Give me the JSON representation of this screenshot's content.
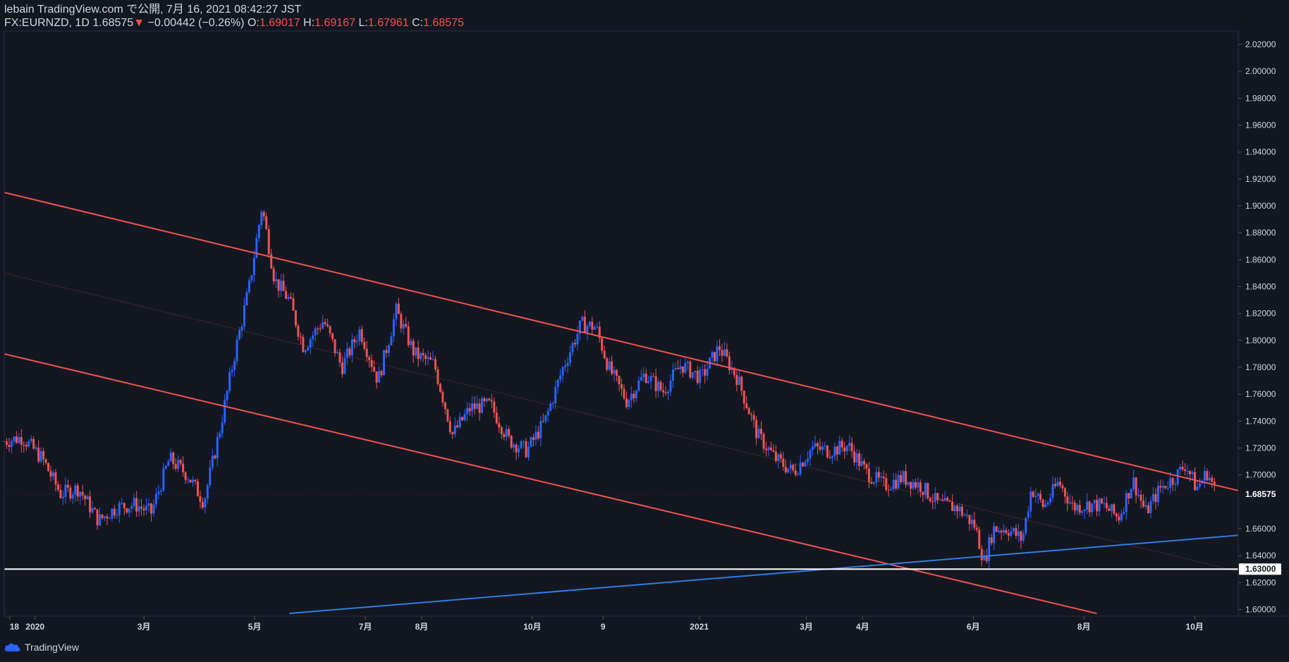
{
  "header": {
    "published": "lebain TradingView.com で公開, 7月 16, 2021 08:42:27 JST",
    "symbol": "FX:EURNZD, 1D",
    "last": "1.68575",
    "arrow": "▼",
    "change": "−0.00442 (−0.26%)",
    "o_label": "O:",
    "o_value": "1.69017",
    "h_label": "H:",
    "h_value": "1.69167",
    "l_label": "L:",
    "l_value": "1.67961",
    "c_label": "C:",
    "c_value": "1.68575"
  },
  "footer": {
    "brand": "TradingView",
    "logo_icon": "tradingview-cloud-icon"
  },
  "colors": {
    "background": "#131722",
    "up": "#2962ff",
    "down": "#ef5350",
    "channel": "#f05350",
    "support": "#ffffff",
    "trend": "#2f7de1"
  },
  "chart_data": {
    "type": "candlestick",
    "symbol": "FX:EURNZD",
    "interval": "1D",
    "ylim": [
      1.595,
      2.03
    ],
    "xlim": [
      "2019-12-15",
      "2021-10-25"
    ],
    "y_ticks": [
      "2.02000",
      "2.00000",
      "1.98000",
      "1.96000",
      "1.94000",
      "1.92000",
      "1.90000",
      "1.88000",
      "1.86000",
      "1.84000",
      "1.82000",
      "1.80000",
      "1.78000",
      "1.76000",
      "1.74000",
      "1.72000",
      "1.70000",
      "1.66000",
      "1.64000",
      "1.62000",
      "1.60000"
    ],
    "x_ticks": [
      {
        "label": "18",
        "date": "2019-12-18"
      },
      {
        "label": "2020",
        "date": "2020-01-01"
      },
      {
        "label": "3月",
        "date": "2020-03-01"
      },
      {
        "label": "5月",
        "date": "2020-05-01"
      },
      {
        "label": "7月",
        "date": "2020-07-01"
      },
      {
        "label": "8月",
        "date": "2020-08-01"
      },
      {
        "label": "10月",
        "date": "2020-10-01"
      },
      {
        "label": "9",
        "date": "2020-11-09"
      },
      {
        "label": "2021",
        "date": "2021-01-01"
      },
      {
        "label": "3月",
        "date": "2021-03-01"
      },
      {
        "label": "4月",
        "date": "2021-04-01"
      },
      {
        "label": "6月",
        "date": "2021-06-01"
      },
      {
        "label": "8月",
        "date": "2021-08-01"
      },
      {
        "label": "10月",
        "date": "2021-10-01"
      }
    ],
    "price_label": "1.68575",
    "support_label": "1.63000",
    "support_level": 1.63,
    "last_close": 1.68575,
    "closes": [
      {
        "date": "2019-12-15",
        "close": 1.725
      },
      {
        "date": "2019-12-25",
        "close": 1.728
      },
      {
        "date": "2020-01-05",
        "close": 1.712
      },
      {
        "date": "2020-01-15",
        "close": 1.686
      },
      {
        "date": "2020-01-25",
        "close": 1.69
      },
      {
        "date": "2020-02-05",
        "close": 1.666
      },
      {
        "date": "2020-02-15",
        "close": 1.676
      },
      {
        "date": "2020-02-25",
        "close": 1.678
      },
      {
        "date": "2020-03-05",
        "close": 1.672
      },
      {
        "date": "2020-03-15",
        "close": 1.712
      },
      {
        "date": "2020-03-25",
        "close": 1.7
      },
      {
        "date": "2020-04-03",
        "close": 1.68
      },
      {
        "date": "2020-04-12",
        "close": 1.735
      },
      {
        "date": "2020-04-20",
        "close": 1.79
      },
      {
        "date": "2020-04-28",
        "close": 1.84
      },
      {
        "date": "2020-05-05",
        "close": 1.9
      },
      {
        "date": "2020-05-12",
        "close": 1.845
      },
      {
        "date": "2020-05-20",
        "close": 1.83
      },
      {
        "date": "2020-05-28",
        "close": 1.795
      },
      {
        "date": "2020-06-08",
        "close": 1.815
      },
      {
        "date": "2020-06-18",
        "close": 1.78
      },
      {
        "date": "2020-06-28",
        "close": 1.808
      },
      {
        "date": "2020-07-08",
        "close": 1.77
      },
      {
        "date": "2020-07-18",
        "close": 1.822
      },
      {
        "date": "2020-07-28",
        "close": 1.79
      },
      {
        "date": "2020-08-08",
        "close": 1.782
      },
      {
        "date": "2020-08-18",
        "close": 1.73
      },
      {
        "date": "2020-08-28",
        "close": 1.75
      },
      {
        "date": "2020-09-08",
        "close": 1.752
      },
      {
        "date": "2020-09-18",
        "close": 1.726
      },
      {
        "date": "2020-09-28",
        "close": 1.718
      },
      {
        "date": "2020-10-08",
        "close": 1.74
      },
      {
        "date": "2020-10-18",
        "close": 1.78
      },
      {
        "date": "2020-10-28",
        "close": 1.812
      },
      {
        "date": "2020-11-05",
        "close": 1.81
      },
      {
        "date": "2020-11-12",
        "close": 1.78
      },
      {
        "date": "2020-11-22",
        "close": 1.755
      },
      {
        "date": "2020-12-02",
        "close": 1.775
      },
      {
        "date": "2020-12-12",
        "close": 1.762
      },
      {
        "date": "2020-12-22",
        "close": 1.782
      },
      {
        "date": "2021-01-02",
        "close": 1.772
      },
      {
        "date": "2021-01-12",
        "close": 1.795
      },
      {
        "date": "2021-01-22",
        "close": 1.772
      },
      {
        "date": "2021-02-02",
        "close": 1.73
      },
      {
        "date": "2021-02-12",
        "close": 1.712
      },
      {
        "date": "2021-02-22",
        "close": 1.702
      },
      {
        "date": "2021-03-04",
        "close": 1.72
      },
      {
        "date": "2021-03-14",
        "close": 1.718
      },
      {
        "date": "2021-03-24",
        "close": 1.722
      },
      {
        "date": "2021-04-03",
        "close": 1.702
      },
      {
        "date": "2021-04-13",
        "close": 1.692
      },
      {
        "date": "2021-04-23",
        "close": 1.698
      },
      {
        "date": "2021-05-03",
        "close": 1.692
      },
      {
        "date": "2021-05-13",
        "close": 1.678
      },
      {
        "date": "2021-05-23",
        "close": 1.676
      },
      {
        "date": "2021-06-02",
        "close": 1.662
      },
      {
        "date": "2021-06-07",
        "close": 1.635
      },
      {
        "date": "2021-06-12",
        "close": 1.66
      },
      {
        "date": "2021-06-20",
        "close": 1.66
      },
      {
        "date": "2021-06-28",
        "close": 1.652
      },
      {
        "date": "2021-07-03",
        "close": 1.69
      },
      {
        "date": "2021-07-10",
        "close": 1.676
      },
      {
        "date": "2021-07-18",
        "close": 1.695
      },
      {
        "date": "2021-07-26",
        "close": 1.676
      },
      {
        "date": "2021-08-04",
        "close": 1.678
      },
      {
        "date": "2021-08-12",
        "close": 1.677
      },
      {
        "date": "2021-08-20",
        "close": 1.668
      },
      {
        "date": "2021-08-28",
        "close": 1.696
      },
      {
        "date": "2021-09-04",
        "close": 1.672
      },
      {
        "date": "2021-09-12",
        "close": 1.69
      },
      {
        "date": "2021-09-20",
        "close": 1.698
      },
      {
        "date": "2021-09-26",
        "close": 1.708
      },
      {
        "date": "2021-10-02",
        "close": 1.69
      },
      {
        "date": "2021-10-08",
        "close": 1.702
      },
      {
        "date": "2021-10-13",
        "close": 1.686
      }
    ],
    "drawings": [
      {
        "kind": "channel-upper",
        "from": {
          "date": "2019-12-15",
          "price": 1.91
        },
        "to": {
          "date": "2021-12-08",
          "price": 1.674
        }
      },
      {
        "kind": "channel-lower",
        "from": {
          "date": "2019-12-15",
          "price": 1.79
        },
        "to": {
          "date": "2021-08-08",
          "price": 1.597
        }
      },
      {
        "kind": "channel-midline",
        "from": {
          "date": "2019-12-15",
          "price": 1.85
        },
        "to": {
          "date": "2021-12-08",
          "price": 1.614
        }
      },
      {
        "kind": "trendline",
        "from": {
          "date": "2020-05-20",
          "price": 1.597
        },
        "to": {
          "date": "2021-12-08",
          "price": 1.66
        }
      }
    ]
  }
}
